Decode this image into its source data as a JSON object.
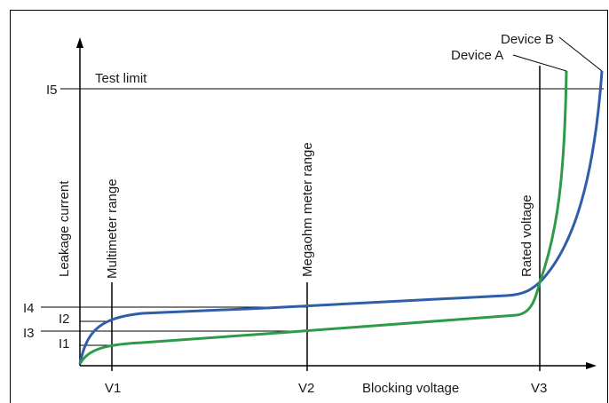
{
  "diagram": {
    "axes": {
      "y_label": "Leakage current",
      "x_label": "Blocking voltage"
    },
    "x_ticks": [
      "V1",
      "V2",
      "V3"
    ],
    "y_ticks": [
      "I1",
      "I2",
      "I3",
      "I4",
      "I5"
    ],
    "test_limit_label": "Test limit",
    "vertical_markers": [
      "Multimeter range",
      "Megaohm meter range",
      "Rated voltage"
    ],
    "devices": [
      {
        "name": "Device A",
        "color": "#2e9a4a"
      },
      {
        "name": "Device B",
        "color": "#2f5ea8"
      }
    ]
  }
}
